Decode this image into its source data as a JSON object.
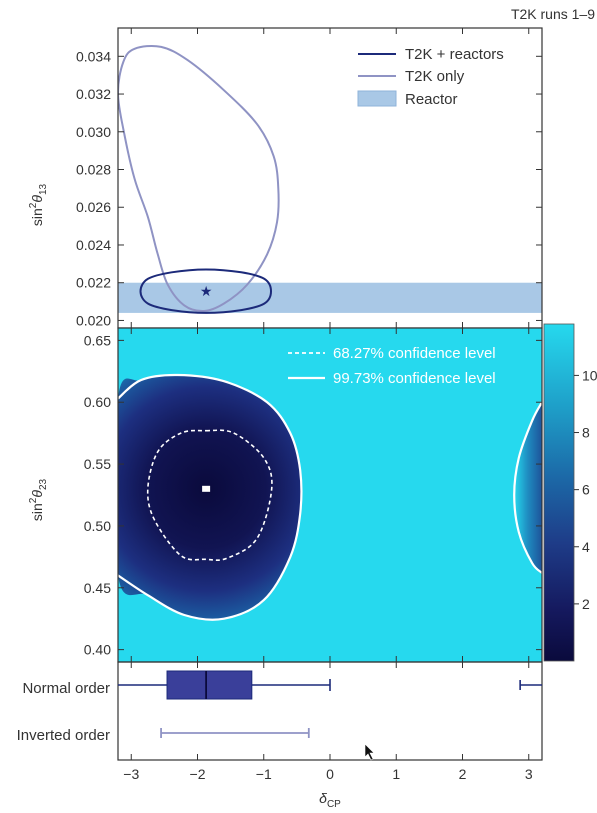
{
  "title": "T2K runs 1–9",
  "colors": {
    "combined": "#1c2a7a",
    "t2k_only": "#8f93c4",
    "reactor_band": "#a9c8e6",
    "map_low": "#0a0a3c",
    "map_high": "#26d9ee",
    "contour": "#ffffff"
  },
  "chart_data": [
    {
      "type": "contour",
      "panel": "top",
      "xlim": [
        -3.2,
        3.2
      ],
      "ylim": [
        0.0196,
        0.0355
      ],
      "ylabel_base": "sin",
      "ylabel_sup": "2",
      "ylabel_theta": "θ",
      "ylabel_sub": "13",
      "yticks": [
        0.02,
        0.022,
        0.024,
        0.026,
        0.028,
        0.03,
        0.032,
        0.034
      ],
      "ytick_labels": [
        "0.020",
        "0.022",
        "0.024",
        "0.026",
        "0.028",
        "0.030",
        "0.032",
        "0.034"
      ],
      "legend": [
        {
          "label": "T2K + reactors",
          "style": "line",
          "color": "#1c2a7a"
        },
        {
          "label": "T2K only",
          "style": "line",
          "color": "#8f93c4"
        },
        {
          "label": "Reactor",
          "style": "band",
          "color": "#a9c8e6"
        }
      ],
      "legend_position": "top-right",
      "reactor_band": [
        0.0204,
        0.022
      ],
      "best_fit": {
        "x": -1.87,
        "y": 0.02155
      },
      "series": [
        {
          "name": "T2K + reactors",
          "x": [
            -1.87,
            -1.34,
            -0.99,
            -0.89,
            -0.99,
            -1.34,
            -1.87,
            -2.39,
            -2.75,
            -2.86,
            -2.75,
            -2.39
          ],
          "y": [
            0.0227,
            0.02255,
            0.0222,
            0.02155,
            0.0209,
            0.02055,
            0.0204,
            0.02055,
            0.0209,
            0.02155,
            0.0222,
            0.02255
          ]
        },
        {
          "name": "T2K only",
          "x": [
            -2.55,
            -2.15,
            -1.6,
            -1.1,
            -0.85,
            -0.78,
            -0.8,
            -0.95,
            -1.25,
            -1.6,
            -1.9,
            -2.2,
            -2.45,
            -2.6,
            -2.75,
            -2.95,
            -3.1,
            -3.2,
            -3.12,
            -2.95
          ],
          "y": [
            0.0345,
            0.0338,
            0.0322,
            0.0304,
            0.0287,
            0.027,
            0.0252,
            0.0235,
            0.0219,
            0.0209,
            0.0205,
            0.0208,
            0.0219,
            0.0235,
            0.0255,
            0.0275,
            0.0298,
            0.032,
            0.0337,
            0.0344
          ]
        }
      ]
    },
    {
      "type": "heatmap",
      "panel": "middle",
      "xlim": [
        -3.2,
        3.2
      ],
      "ylim": [
        0.39,
        0.66
      ],
      "ylabel_base": "sin",
      "ylabel_sup": "2",
      "ylabel_theta": "θ",
      "ylabel_sub": "23",
      "yticks": [
        0.4,
        0.45,
        0.5,
        0.55,
        0.6,
        0.65
      ],
      "ytick_labels": [
        "0.40",
        "0.45",
        "0.50",
        "0.55",
        "0.60",
        "0.65"
      ],
      "legend": [
        {
          "label": "68.27% confidence level",
          "style": "dashed"
        },
        {
          "label": "99.73% confidence level",
          "style": "solid"
        }
      ],
      "legend_position": "top-right",
      "best_fit": {
        "x": -1.87,
        "y": 0.53
      },
      "colorbar": {
        "range": [
          0,
          11.8
        ],
        "ticks": [
          2,
          4,
          6,
          8,
          10
        ],
        "tick_labels": [
          "2",
          "4",
          "6",
          "8",
          "10"
        ]
      },
      "contour_68": {
        "x": [
          -1.87,
          -1.45,
          -1.0,
          -0.88,
          -1.1,
          -1.55,
          -1.87,
          -2.25,
          -2.65,
          -2.75,
          -2.6,
          -2.25
        ],
        "y": [
          0.577,
          0.575,
          0.555,
          0.53,
          0.49,
          0.474,
          0.473,
          0.476,
          0.505,
          0.53,
          0.56,
          0.575
        ]
      },
      "contour_997": {
        "x": [
          -3.2,
          -2.85,
          -2.3,
          -1.6,
          -0.95,
          -0.6,
          -0.45,
          -0.45,
          -0.6,
          -1.0,
          -1.6,
          -2.2,
          -2.75,
          -3.2
        ],
        "y": [
          0.603,
          0.618,
          0.622,
          0.617,
          0.6,
          0.575,
          0.545,
          0.51,
          0.475,
          0.44,
          0.425,
          0.428,
          0.444,
          0.46
        ]
      },
      "contour_997_right": {
        "x": [
          3.2,
          3.05,
          2.85,
          2.78,
          2.85,
          3.05,
          3.2
        ],
        "y": [
          0.6,
          0.585,
          0.555,
          0.525,
          0.495,
          0.47,
          0.462
        ]
      }
    },
    {
      "type": "box",
      "panel": "bottom",
      "xlim": [
        -3.2,
        3.2
      ],
      "xlabel_base": "δ",
      "xlabel_sub": "CP",
      "xticks": [
        -3,
        -2,
        -1,
        0,
        1,
        2,
        3
      ],
      "xtick_labels": [
        "−3",
        "−2",
        "−1",
        "0",
        "1",
        "2",
        "3"
      ],
      "categories": [
        "Normal order",
        "Inverted order"
      ],
      "normal_order": {
        "box": [
          -2.46,
          -1.18
        ],
        "median": -1.87,
        "whisker_left_to": -3.2,
        "whisker_right_to": 0.0,
        "right_segment": [
          2.87,
          3.2
        ]
      },
      "inverted_order": {
        "range": [
          -2.55,
          -0.32
        ]
      }
    }
  ]
}
